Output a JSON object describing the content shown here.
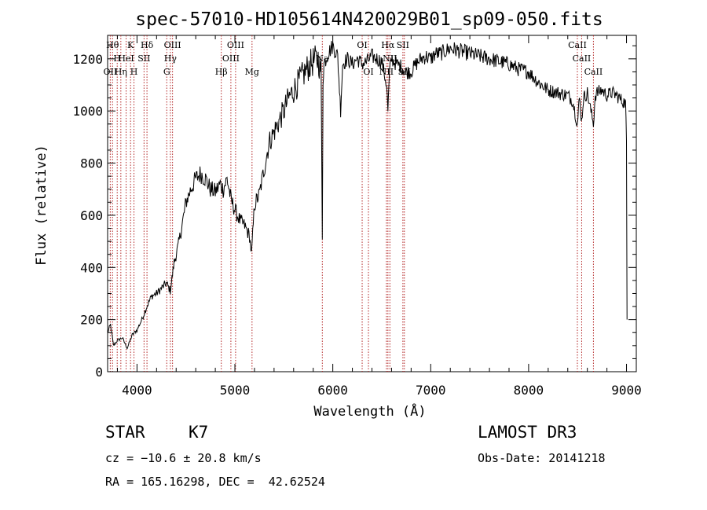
{
  "colors": {
    "background": "#ffffff",
    "spectrum": "#000000",
    "line_marker": "#b22222",
    "text": "#000000"
  },
  "chart_data": {
    "type": "line",
    "title": "spec-57010-HD105614N420029B01_sp09-050.fits",
    "xlabel": "Wavelength (Å)",
    "ylabel": "Flux (relative)",
    "xlim": [
      3700,
      9100
    ],
    "ylim": [
      0,
      1290
    ],
    "grid": false,
    "x_ticks": [
      4000,
      5000,
      6000,
      7000,
      8000,
      9000
    ],
    "y_ticks": [
      0,
      200,
      400,
      600,
      800,
      1000,
      1200
    ],
    "y_tick_labels": [
      "0",
      "200",
      "400",
      "600",
      "800",
      "1000",
      "1200"
    ],
    "series": [
      {
        "name": "spectrum",
        "x": [
          3700,
          3730,
          3760,
          3800,
          3850,
          3900,
          3950,
          4000,
          4050,
          4100,
          4150,
          4200,
          4250,
          4300,
          4340,
          4380,
          4420,
          4460,
          4500,
          4550,
          4600,
          4650,
          4700,
          4750,
          4800,
          4850,
          4880,
          4920,
          4960,
          5000,
          5050,
          5100,
          5150,
          5170,
          5200,
          5250,
          5300,
          5350,
          5400,
          5450,
          5500,
          5550,
          5600,
          5650,
          5700,
          5750,
          5800,
          5850,
          5880,
          5893,
          5900,
          5910,
          5950,
          6000,
          6050,
          6080,
          6100,
          6150,
          6200,
          6250,
          6300,
          6350,
          6400,
          6450,
          6500,
          6550,
          6563,
          6580,
          6600,
          6650,
          6700,
          6750,
          6800,
          6850,
          6900,
          6950,
          7000,
          7050,
          7100,
          7150,
          7200,
          7300,
          7400,
          7500,
          7600,
          7700,
          7800,
          7900,
          8000,
          8100,
          8200,
          8300,
          8400,
          8450,
          8498,
          8520,
          8542,
          8560,
          8600,
          8662,
          8680,
          8700,
          8750,
          8800,
          8850,
          8900,
          8950,
          8990,
          9000,
          9005
        ],
        "y": [
          150,
          180,
          100,
          120,
          130,
          90,
          140,
          160,
          200,
          250,
          290,
          300,
          320,
          340,
          310,
          420,
          480,
          560,
          650,
          700,
          740,
          760,
          740,
          700,
          690,
          720,
          700,
          740,
          660,
          620,
          580,
          560,
          520,
          450,
          640,
          680,
          780,
          880,
          920,
          960,
          1000,
          1050,
          1080,
          1110,
          1140,
          1170,
          1190,
          1200,
          1150,
          520,
          1120,
          1180,
          1220,
          1250,
          1210,
          1000,
          1180,
          1200,
          1180,
          1200,
          1180,
          1190,
          1210,
          1200,
          1190,
          1100,
          1000,
          1150,
          1200,
          1180,
          1170,
          1150,
          1150,
          1180,
          1200,
          1210,
          1200,
          1220,
          1220,
          1230,
          1240,
          1230,
          1220,
          1210,
          1200,
          1190,
          1180,
          1160,
          1150,
          1110,
          1080,
          1070,
          1060,
          1040,
          950,
          1050,
          960,
          1050,
          1070,
          950,
          1060,
          1070,
          1080,
          1060,
          1070,
          1060,
          1040,
          1030,
          880,
          200
        ]
      }
    ],
    "line_markers": [
      {
        "x": 3727,
        "label": "OII",
        "row": 2
      },
      {
        "x": 3750,
        "label": "Hθ",
        "row": 0
      },
      {
        "x": 3798,
        "label": "H",
        "row": 1
      },
      {
        "x": 3835,
        "label": "Hη",
        "row": 2
      },
      {
        "x": 3889,
        "label": "HeI",
        "row": 1
      },
      {
        "x": 3934,
        "label": "K",
        "row": 0
      },
      {
        "x": 3969,
        "label": "H",
        "row": 2
      },
      {
        "x": 4072,
        "label": "SII",
        "row": 1
      },
      {
        "x": 4102,
        "label": "Hδ",
        "row": 0
      },
      {
        "x": 4304,
        "label": "G",
        "row": 2
      },
      {
        "x": 4341,
        "label": "Hγ",
        "row": 1
      },
      {
        "x": 4363,
        "label": "OIII",
        "row": 0
      },
      {
        "x": 4861,
        "label": "Hβ",
        "row": 2
      },
      {
        "x": 4959,
        "label": "OIII",
        "row": 1
      },
      {
        "x": 5007,
        "label": "OIII",
        "row": 0
      },
      {
        "x": 5175,
        "label": "Mg",
        "row": 2
      },
      {
        "x": 5893,
        "label": "Na",
        "row": 1
      },
      {
        "x": 6300,
        "label": "OI",
        "row": 0
      },
      {
        "x": 6364,
        "label": "OI",
        "row": 2
      },
      {
        "x": 6548,
        "label": "NII",
        "row": 2
      },
      {
        "x": 6563,
        "label": "Hα",
        "row": 0
      },
      {
        "x": 6583,
        "label": "NII",
        "row": 1
      },
      {
        "x": 6716,
        "label": "SII",
        "row": 0
      },
      {
        "x": 6731,
        "label": "SII",
        "row": 2
      },
      {
        "x": 8498,
        "label": "CaII",
        "row": 0
      },
      {
        "x": 8542,
        "label": "CaII",
        "row": 1
      },
      {
        "x": 8662,
        "label": "CaII",
        "row": 2
      }
    ]
  },
  "info": {
    "object_class": "STAR",
    "subclass": "K7",
    "survey": "LAMOST DR3",
    "redshift": "cz = −10.6 ± 20.8 km/s",
    "obs_date": "Obs-Date: 20141218",
    "coords": "RA = 165.16298, DEC =  42.62524"
  }
}
